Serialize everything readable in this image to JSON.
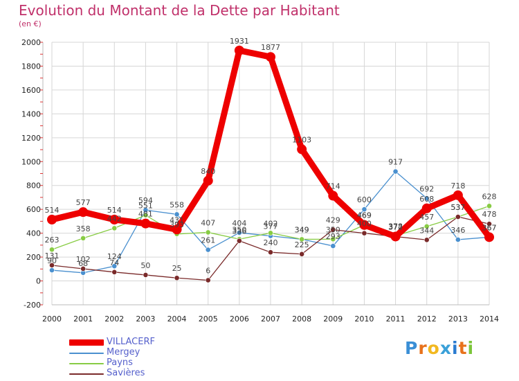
{
  "title": "Evolution du Montant de la Dette par Habitant",
  "subtitle": "(en €)",
  "logo_text": "Proxiti",
  "logo_colors": [
    "#3a8fd6",
    "#e8721c",
    "#f2b820",
    "#3aa0d8",
    "#2a7bd0",
    "#e8721c",
    "#7cc63a"
  ],
  "chart_data": {
    "type": "line",
    "title": "Evolution du Montant de la Dette par Habitant",
    "subtitle": "(en €)",
    "xlabel": "",
    "ylabel": "",
    "x": [
      "2000",
      "2001",
      "2002",
      "2003",
      "2004",
      "2005",
      "2006",
      "2007",
      "2008",
      "2009",
      "2010",
      "2011",
      "2012",
      "2013",
      "2014"
    ],
    "ylim": [
      -200,
      2000
    ],
    "yticks": [
      "-200",
      "0",
      "200",
      "400",
      "600",
      "800",
      "1000",
      "1200",
      "1400",
      "1600",
      "1800",
      "2000"
    ],
    "grid": true,
    "legend_position": "bottom-left",
    "series": [
      {
        "name": "VILLACERF",
        "color": "#ee0000",
        "emphasis": true,
        "values": [
          514,
          577,
          514,
          481,
          431,
          840,
          1931,
          1877,
          1103,
          714,
          469,
          372,
          608,
          718,
          367
        ],
        "labels": [
          "514",
          "577",
          "514",
          "481",
          "431",
          "840",
          "1931",
          "1877",
          "1103",
          "714",
          "469",
          "372",
          "608",
          "718",
          "367"
        ]
      },
      {
        "name": "Mergey",
        "color": "#4a90cf",
        "values": [
          90,
          68,
          124,
          594,
          558,
          261,
          404,
          377,
          349,
          293,
          600,
          917,
          692,
          346,
          367
        ],
        "labels": [
          "90",
          "68",
          "124",
          "594",
          "558",
          "261",
          "404",
          "377",
          "349",
          "293",
          "600",
          "917",
          "692",
          "346",
          "367"
        ]
      },
      {
        "name": "Payns",
        "color": "#88cc44",
        "values": [
          263,
          358,
          442,
          551,
          393,
          407,
          350,
          402,
          349,
          350,
          469,
          378,
          457,
          537,
          628
        ],
        "labels": [
          "263",
          "358",
          "442",
          "551",
          "393",
          "407",
          "350",
          "402",
          "349",
          "350",
          "469",
          "378",
          "457",
          "537",
          "628"
        ]
      },
      {
        "name": "Savières",
        "color": "#7a2a2a",
        "values": [
          131,
          102,
          74,
          50,
          25,
          6,
          336,
          240,
          225,
          429,
          400,
          372,
          344,
          537,
          478
        ],
        "labels": [
          "131",
          "102",
          "74",
          "50",
          "25",
          "6",
          "336",
          "240",
          "225",
          "429",
          "400",
          "372",
          "344",
          "537",
          "478"
        ]
      }
    ]
  }
}
